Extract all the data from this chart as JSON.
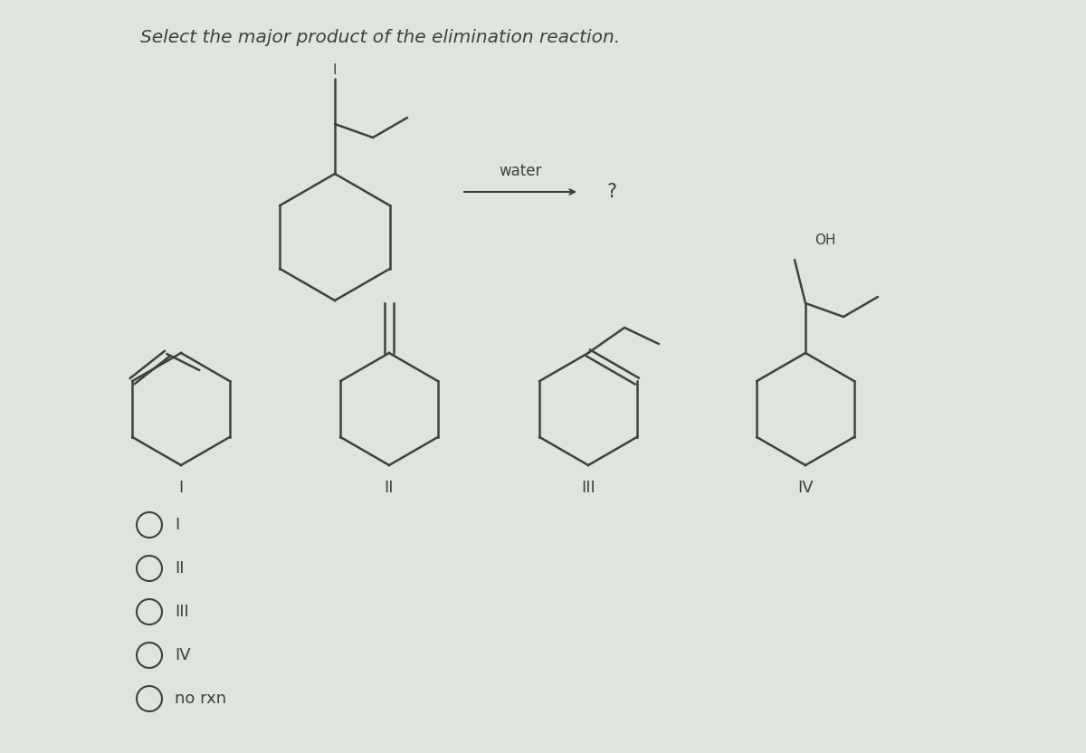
{
  "title": "Select the major product of the elimination reaction.",
  "background_color": "#dde5dd",
  "text_color": "#404040",
  "title_fontsize": 14.5,
  "answer_options": [
    "I",
    "II",
    "III",
    "IV",
    "no rxn"
  ],
  "reagent_label": "water",
  "question_mark": "?",
  "roman_labels": [
    "I",
    "II",
    "III",
    "IV"
  ],
  "structure_label_fontsize": 13,
  "answer_fontsize": 13
}
